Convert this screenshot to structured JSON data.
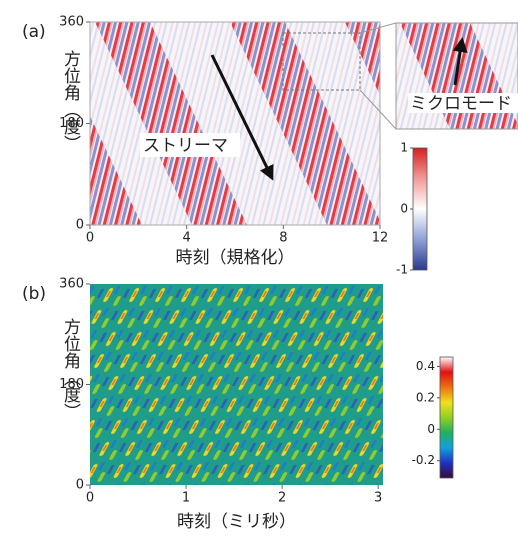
{
  "chart_data": [
    {
      "type": "heatmap",
      "panel_label": "(a)",
      "x_label": "時刻（規格化）",
      "y_label": "方位角（度）",
      "xlim": [
        0,
        12
      ],
      "xticks": [
        0,
        4,
        8,
        12
      ],
      "ylim": [
        0,
        360
      ],
      "yticks": [
        0,
        180,
        360
      ],
      "annotations": [
        "ストリーマ",
        "ミクロモード"
      ],
      "colorbar": {
        "lim": [
          -1,
          1
        ],
        "ticks": [
          -1,
          0,
          1
        ],
        "colors": [
          "#2b3a8f",
          "#8f9fd6",
          "#ffffff",
          "#f29a9a",
          "#d42020"
        ]
      }
    },
    {
      "type": "heatmap",
      "panel_label": "(b)",
      "x_label": "時刻（ミリ秒）",
      "y_label": "方位角（度）",
      "xlim": [
        0,
        3.05
      ],
      "xticks": [
        0,
        1,
        2,
        3
      ],
      "ylim": [
        0,
        360
      ],
      "yticks": [
        0,
        180,
        360
      ],
      "colorbar": {
        "lim": [
          -0.31,
          0.46
        ],
        "ticks": [
          -0.2,
          0,
          0.2,
          0.4
        ],
        "colors": [
          "#3a0a3a",
          "#2030c0",
          "#10a0e0",
          "#20b060",
          "#90d020",
          "#f0e020",
          "#f07010",
          "#e01010",
          "#ffffff"
        ]
      }
    }
  ]
}
